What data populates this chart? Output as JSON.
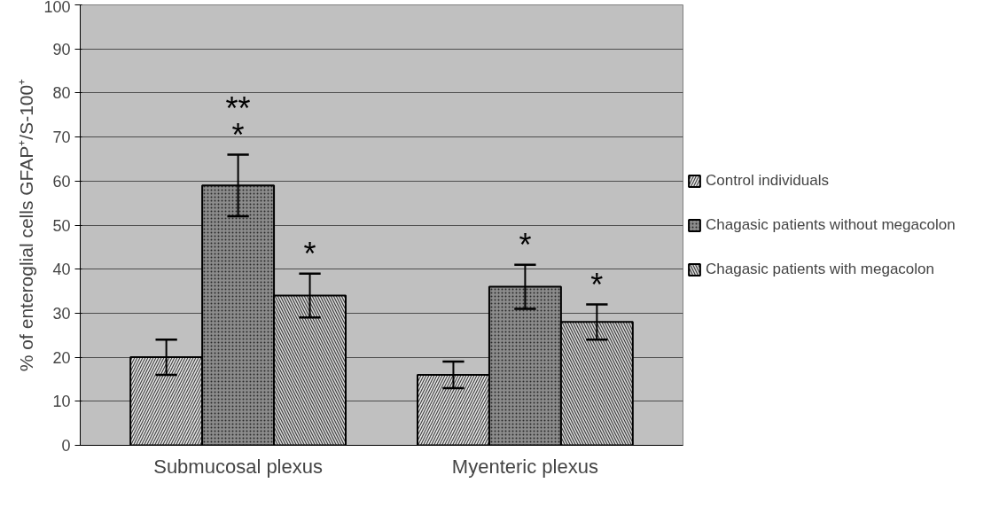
{
  "chart_data": {
    "type": "bar",
    "ylabel": "% of enteroglial cells GFAP⁺/S-100⁺",
    "categories": [
      "Submucosal plexus",
      "Myenteric plexus"
    ],
    "series": [
      {
        "name": "Control individuals",
        "color": "#e6e6e6",
        "values": [
          20,
          16
        ],
        "errors": [
          4,
          3
        ]
      },
      {
        "name": "Chagasic patients without megacolon",
        "color": "#8c8c8c",
        "values": [
          59,
          36
        ],
        "errors": [
          7,
          5
        ]
      },
      {
        "name": "Chagasic patients with megacolon",
        "color": "#d9d9d9",
        "values": [
          34,
          28
        ],
        "errors": [
          5,
          4
        ]
      }
    ],
    "annotations": [
      "**",
      "*",
      "*",
      "*",
      "*"
    ],
    "ylim": [
      0,
      100
    ],
    "yticks": [
      0,
      10,
      20,
      30,
      40,
      50,
      60,
      70,
      80,
      90,
      100
    ],
    "grid": "y",
    "legend": "right"
  }
}
